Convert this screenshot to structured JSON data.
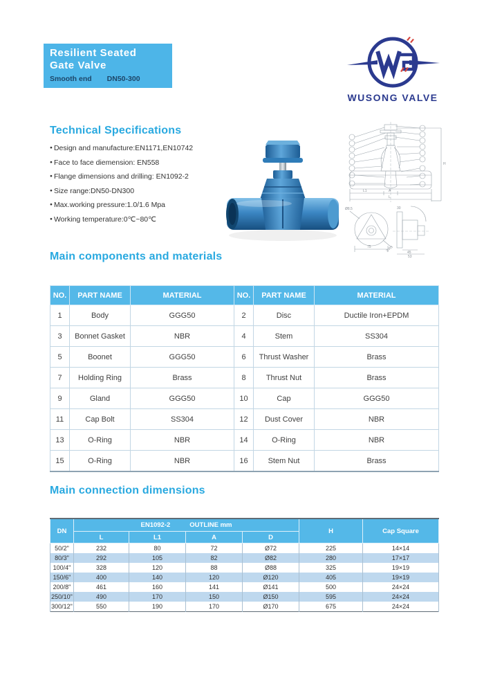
{
  "banner": {
    "title_line1": "Resilient Seated",
    "title_line2": "Gate Valve",
    "subtitle_left": "Smooth end",
    "subtitle_right": "DN50-300",
    "bg_color": "#4db5e8"
  },
  "logo": {
    "brand": "WUSONG VALVE",
    "navy": "#2b3a8f",
    "red": "#d6453d"
  },
  "tech_specs": {
    "heading": "Technical Specifications",
    "items": [
      "Design and manufacture:EN1171,EN10742",
      "Face to face diemension: EN558",
      "Flange dimensions and drilling: EN1092-2",
      "Size range:DN50-DN300",
      "Max.working pressure:1.0/1.6 Mpa",
      "Working temperature:0℃~80℃"
    ]
  },
  "components": {
    "heading": "Main components and materials",
    "columns": [
      "NO.",
      "PART NAME",
      "MATERIAL",
      "NO.",
      "PART NAME",
      "MATERIAL"
    ],
    "rows": [
      [
        "1",
        "Body",
        "GGG50",
        "2",
        "Disc",
        "Ductile Iron+EPDM"
      ],
      [
        "3",
        "Bonnet Gasket",
        "NBR",
        "4",
        "Stem",
        "SS304"
      ],
      [
        "5",
        "Boonet",
        "GGG50",
        "6",
        "Thrust Washer",
        "Brass"
      ],
      [
        "7",
        "Holding Ring",
        "Brass",
        "8",
        "Thrust Nut",
        "Brass"
      ],
      [
        "9",
        "Gland",
        "GGG50",
        "10",
        "Cap",
        "GGG50"
      ],
      [
        "11",
        "Cap Bolt",
        "SS304",
        "12",
        "Dust Cover",
        "NBR"
      ],
      [
        "13",
        "O-Ring",
        "NBR",
        "14",
        "O-Ring",
        "NBR"
      ],
      [
        "15",
        "O-Ring",
        "NBR",
        "16",
        "Stem Nut",
        "Brass"
      ]
    ]
  },
  "dimensions": {
    "heading": "Main connection dimensions",
    "col_dn": "DN",
    "group_std": "EN1092-2",
    "group_unit": "OUTLINE mm",
    "sub_columns": [
      "L",
      "L1",
      "A",
      "D"
    ],
    "col_h": "H",
    "col_cap": "Cap Square",
    "rows": [
      [
        "50/2\"",
        "232",
        "80",
        "72",
        "Ø72",
        "225",
        "14×14"
      ],
      [
        "80/3\"",
        "292",
        "105",
        "82",
        "Ø82",
        "280",
        "17×17"
      ],
      [
        "100/4\"",
        "328",
        "120",
        "88",
        "Ø88",
        "325",
        "19×19"
      ],
      [
        "150/6\"",
        "400",
        "140",
        "120",
        "Ø120",
        "405",
        "19×19"
      ],
      [
        "200/8\"",
        "461",
        "160",
        "141",
        "Ø141",
        "500",
        "24×24"
      ],
      [
        "250/10\"",
        "490",
        "170",
        "150",
        "Ø150",
        "595",
        "24×24"
      ],
      [
        "300/12\"",
        "550",
        "190",
        "170",
        "Ø170",
        "675",
        "24×24"
      ]
    ]
  },
  "drawing": {
    "labels": {
      "h": "H",
      "l": "L",
      "l1": "L1",
      "a": "A",
      "width75": "75",
      "radius": "3-R3",
      "bore": "Ø8.5",
      "d30": "30",
      "d45": "45",
      "d53": "53"
    }
  },
  "colors": {
    "accent_blue": "#29a9e0",
    "table_header_blue": "#54b8e8",
    "alt_row_blue": "#bed8ee",
    "valve_blue": "#2f7fc1"
  }
}
